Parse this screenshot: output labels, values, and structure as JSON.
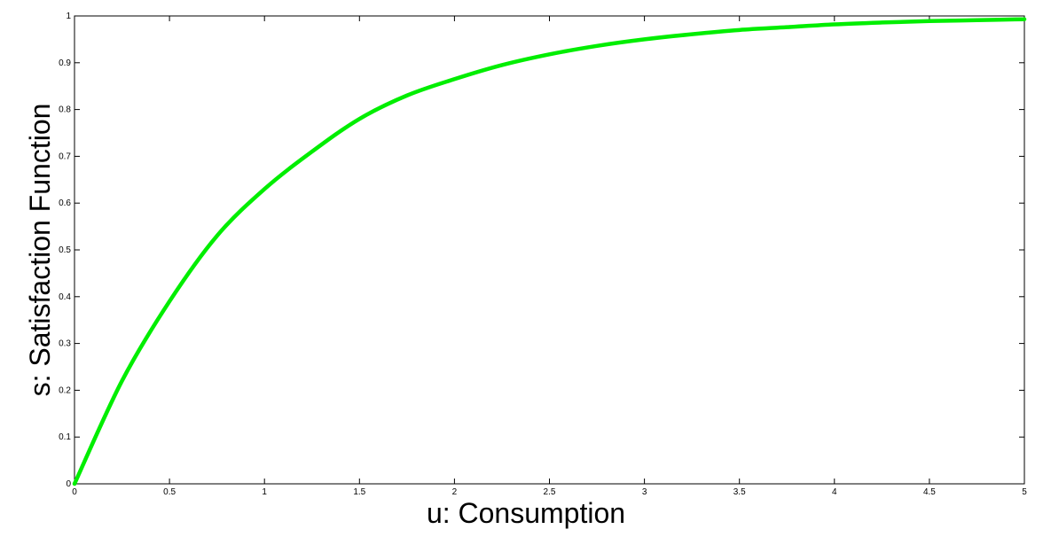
{
  "chart_data": {
    "type": "line",
    "title": "",
    "xlabel": "u: Consumption",
    "ylabel": "s: Satisfaction Function",
    "xlim": [
      0,
      5
    ],
    "ylim": [
      0,
      1
    ],
    "x_ticks": [
      0,
      0.5,
      1,
      1.5,
      2,
      2.5,
      3,
      3.5,
      4,
      4.5,
      5
    ],
    "y_ticks": [
      0,
      0.1,
      0.2,
      0.3,
      0.4,
      0.5,
      0.6,
      0.7,
      0.8,
      0.9,
      1
    ],
    "x_tick_labels": [
      "0",
      "0.5",
      "1",
      "1.5",
      "2",
      "2.5",
      "3",
      "3.5",
      "4",
      "4.5",
      "5"
    ],
    "y_tick_labels": [
      "0",
      "0.1",
      "0.2",
      "0.3",
      "0.4",
      "0.5",
      "0.6",
      "0.7",
      "0.8",
      "0.9",
      "1"
    ],
    "grid": false,
    "series": [
      {
        "color": "#00ee00",
        "x": [
          0,
          0.25,
          0.5,
          0.75,
          1,
          1.25,
          1.5,
          1.75,
          2,
          2.25,
          2.5,
          2.75,
          3,
          3.25,
          3.5,
          3.75,
          4,
          4.25,
          4.5,
          4.75,
          5
        ],
        "y": [
          0,
          0.22,
          0.39,
          0.53,
          0.63,
          0.71,
          0.78,
          0.83,
          0.865,
          0.895,
          0.918,
          0.936,
          0.95,
          0.961,
          0.97,
          0.976,
          0.982,
          0.986,
          0.989,
          0.991,
          0.993
        ]
      }
    ]
  }
}
